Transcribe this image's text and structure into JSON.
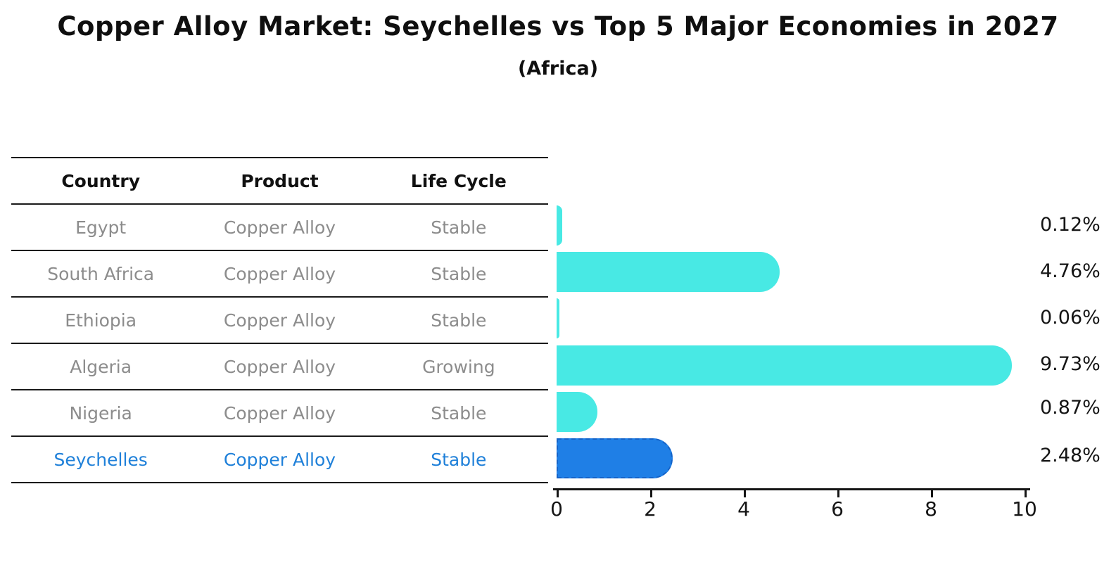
{
  "title": "Copper Alloy Market: Seychelles vs Top 5 Major Economies in 2027",
  "subtitle": "(Africa)",
  "table": {
    "headers": [
      "Country",
      "Product",
      "Life Cycle"
    ],
    "rows": [
      {
        "country": "Egypt",
        "product": "Copper Alloy",
        "life_cycle": "Stable",
        "highlight": false
      },
      {
        "country": "South Africa",
        "product": "Copper Alloy",
        "life_cycle": "Stable",
        "highlight": false
      },
      {
        "country": "Ethiopia",
        "product": "Copper Alloy",
        "life_cycle": "Stable",
        "highlight": false
      },
      {
        "country": "Algeria",
        "product": "Copper Alloy",
        "life_cycle": "Growing",
        "highlight": false
      },
      {
        "country": "Nigeria",
        "product": "Copper Alloy",
        "life_cycle": "Stable",
        "highlight": false
      },
      {
        "country": "Seychelles",
        "product": "Copper Alloy",
        "life_cycle": "Stable",
        "highlight": true
      }
    ]
  },
  "chart_data": {
    "type": "bar",
    "orientation": "horizontal",
    "categories": [
      "Egypt",
      "South Africa",
      "Ethiopia",
      "Algeria",
      "Nigeria",
      "Seychelles"
    ],
    "values": [
      0.12,
      4.76,
      0.06,
      9.73,
      0.87,
      2.48
    ],
    "data_labels": [
      "0.12%",
      "4.76%",
      "0.06%",
      "9.73%",
      "0.87%",
      "2.48%"
    ],
    "title": "Copper Alloy Market: Seychelles vs Top 5 Major Economies in 2027",
    "subtitle": "(Africa)",
    "xlabel": "",
    "ylabel": "",
    "xlim": [
      0,
      10
    ],
    "x_ticks": [
      "0",
      "2",
      "4",
      "6",
      "8",
      "10"
    ],
    "grid": false,
    "legend": false,
    "highlight_index": 5,
    "bar_color": "#48e9e4",
    "highlight_bar_color": "#1f7fe6",
    "highlight_border_color": "#1563c8",
    "highlight_text_color": "#1f80d9"
  }
}
